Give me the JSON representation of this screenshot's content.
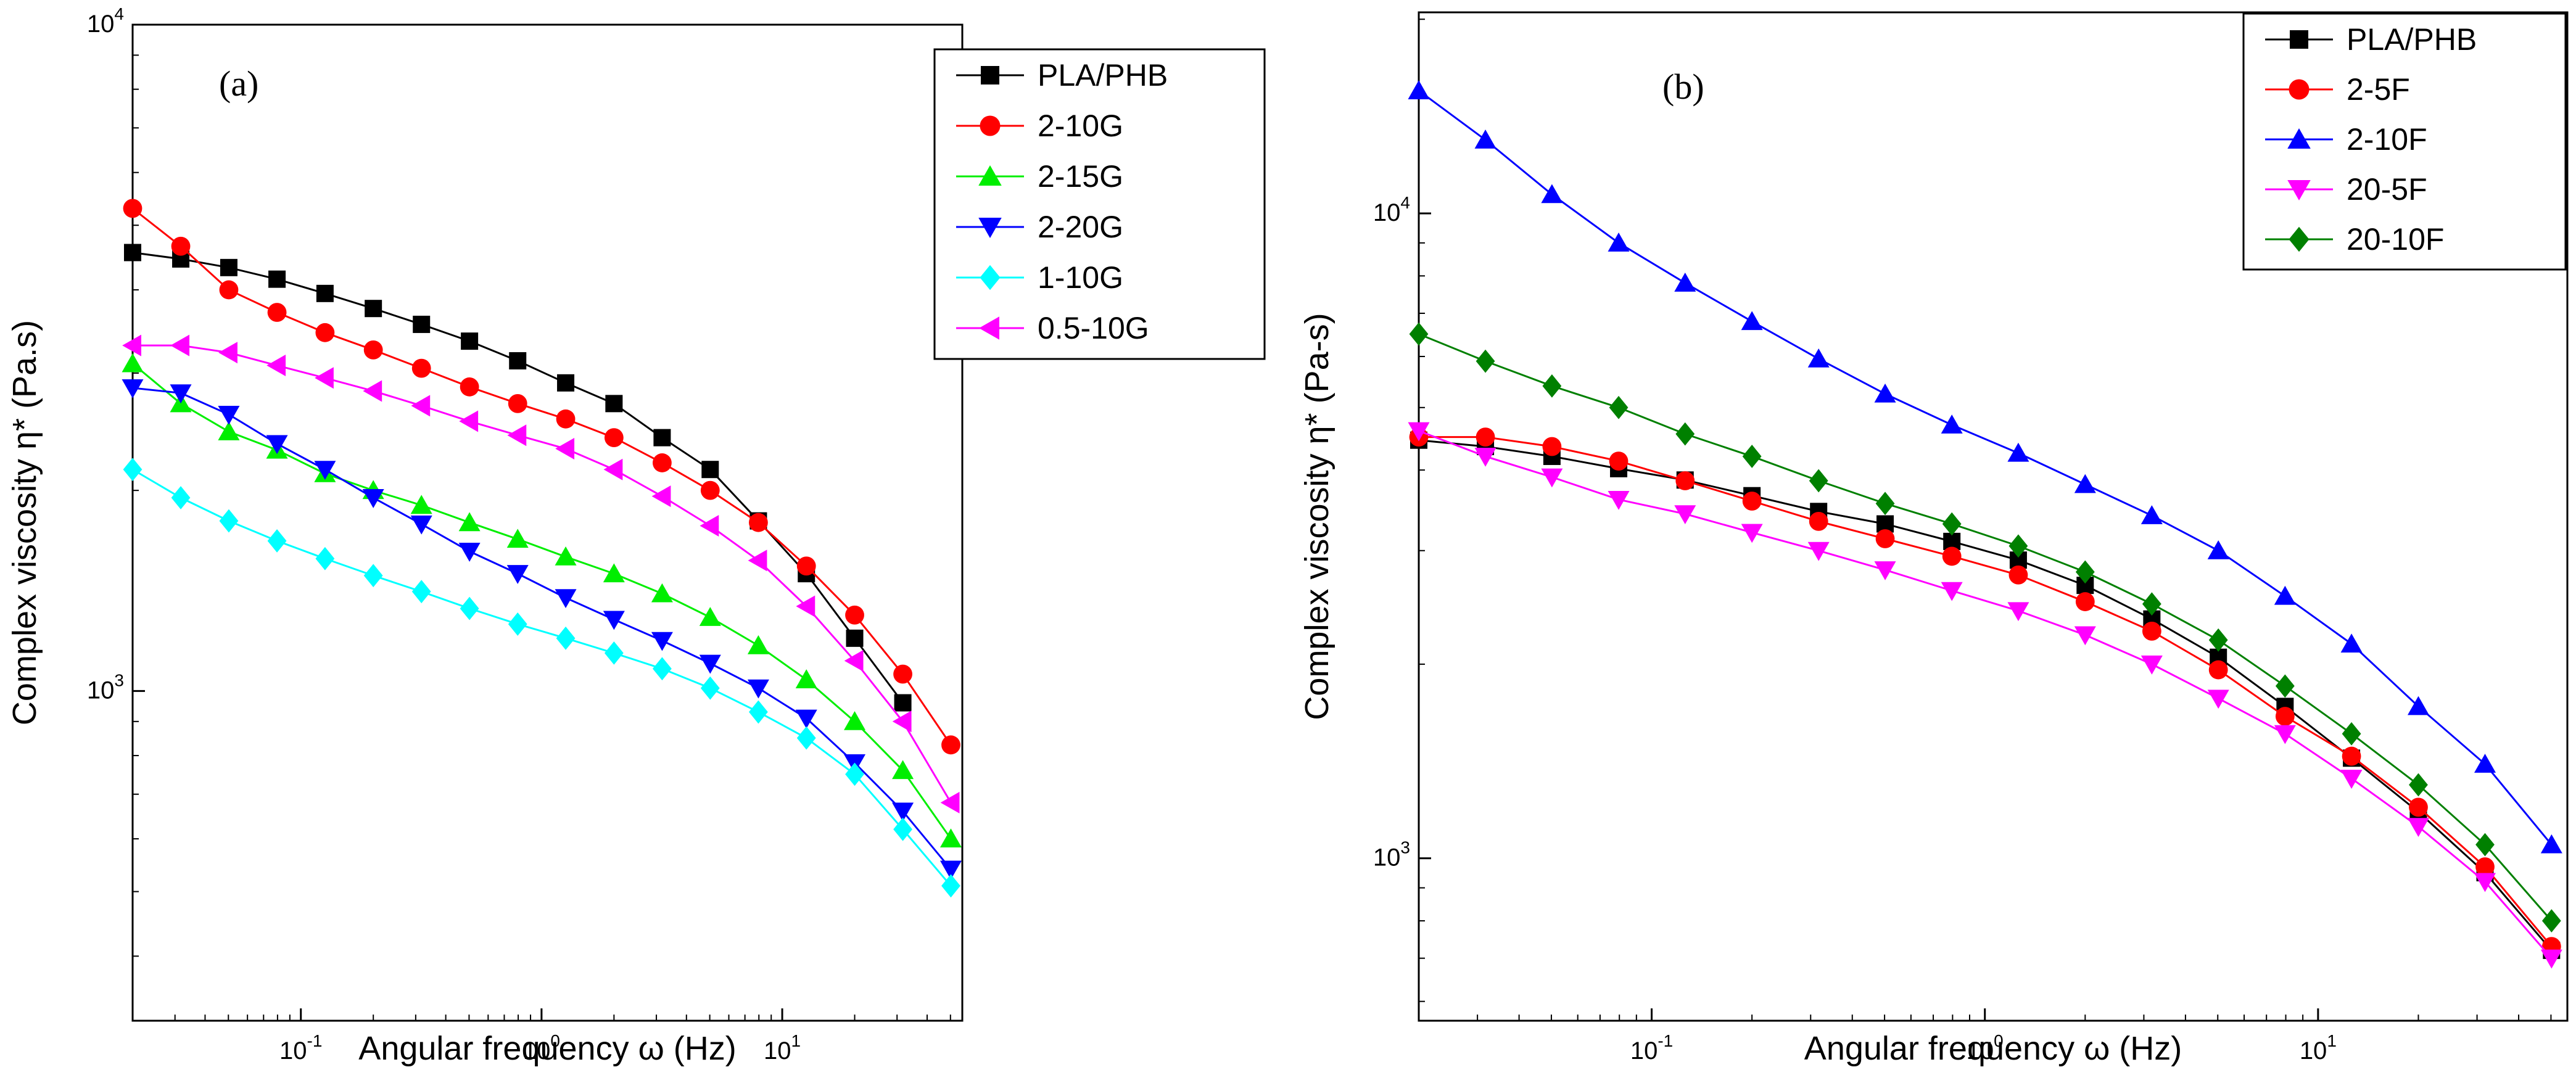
{
  "chart_data": [
    {
      "type": "line",
      "panel_label": "(a)",
      "xlabel": "Angular frequency ω (Hz)",
      "ylabel": "Complex viscosity η* (Pa.s)",
      "x_scale": "log",
      "y_scale": "log",
      "xlim": [
        0.02,
        56
      ],
      "ylim": [
        320,
        10000
      ],
      "x_ticks": [
        {
          "value": 0.1,
          "base": "10",
          "exp": "-1"
        },
        {
          "value": 1,
          "label": "10",
          "exp": "0"
        },
        {
          "value": 10,
          "base": "10",
          "exp": "1"
        }
      ],
      "y_ticks": [
        {
          "value": 1000,
          "base": "10",
          "exp": "3"
        },
        {
          "value": 10000,
          "base": "10",
          "exp": "4"
        }
      ],
      "grid": false,
      "legend_position": "top-right",
      "x": [
        0.02,
        0.0317,
        0.0502,
        0.0796,
        0.126,
        0.2,
        0.317,
        0.502,
        0.796,
        1.26,
        2.0,
        3.17,
        5.02,
        7.96,
        12.6,
        20.0,
        31.7,
        50.2
      ],
      "series": [
        {
          "name": "PLA/PHB",
          "color": "#000000",
          "marker": "square",
          "values": [
            4550,
            4450,
            4320,
            4150,
            3950,
            3750,
            3550,
            3350,
            3130,
            2900,
            2700,
            2400,
            2150,
            1800,
            1500,
            1200,
            960,
            null
          ]
        },
        {
          "name": "2-10G",
          "color": "#ff0000",
          "marker": "circle",
          "values": [
            5300,
            4650,
            4000,
            3700,
            3450,
            3250,
            3050,
            2860,
            2700,
            2560,
            2400,
            2200,
            2000,
            1790,
            1540,
            1300,
            1060,
            830
          ]
        },
        {
          "name": "2-15G",
          "color": "#00ee00",
          "marker": "triangle-up",
          "values": [
            3100,
            2700,
            2450,
            2300,
            2120,
            2000,
            1900,
            1790,
            1690,
            1590,
            1500,
            1400,
            1290,
            1170,
            1040,
            900,
            760,
            600
          ]
        },
        {
          "name": "2-20G",
          "color": "#0000ff",
          "marker": "triangle-down",
          "values": [
            2850,
            2800,
            2600,
            2350,
            2150,
            1950,
            1780,
            1620,
            1500,
            1380,
            1280,
            1190,
            1100,
            1010,
            910,
            780,
            660,
            540
          ]
        },
        {
          "name": "1-10G",
          "color": "#00ffff",
          "marker": "diamond",
          "values": [
            2150,
            1950,
            1800,
            1680,
            1580,
            1490,
            1410,
            1330,
            1260,
            1200,
            1140,
            1080,
            1010,
            930,
            850,
            750,
            620,
            510
          ]
        },
        {
          "name": "0.5-10G",
          "color": "#ff00ff",
          "marker": "triangle-left",
          "values": [
            3300,
            3300,
            3220,
            3080,
            2950,
            2820,
            2680,
            2540,
            2420,
            2310,
            2150,
            1960,
            1770,
            1570,
            1340,
            1110,
            900,
            680
          ]
        }
      ]
    },
    {
      "type": "line",
      "panel_label": "(b)",
      "xlabel": "Angular frequency ω (Hz)",
      "ylabel": "Complex viscosity η* (Pa-s)",
      "x_scale": "log",
      "y_scale": "log",
      "xlim": [
        0.02,
        56
      ],
      "ylim": [
        560,
        20500
      ],
      "x_ticks": [
        {
          "value": 0.1,
          "base": "10",
          "exp": "-1"
        },
        {
          "value": 1,
          "label": "10",
          "exp": "0"
        },
        {
          "value": 10,
          "base": "10",
          "exp": "1"
        }
      ],
      "y_ticks": [
        {
          "value": 1000,
          "base": "10",
          "exp": "3"
        },
        {
          "value": 10000,
          "base": "10",
          "exp": "4"
        }
      ],
      "grid": false,
      "legend_position": "top-right",
      "x": [
        0.02,
        0.0317,
        0.0502,
        0.0796,
        0.126,
        0.2,
        0.317,
        0.502,
        0.796,
        1.26,
        2.0,
        3.17,
        5.02,
        7.96,
        12.6,
        20.0,
        31.7,
        50.2
      ],
      "series": [
        {
          "name": "PLA/PHB",
          "color": "#000000",
          "marker": "square",
          "values": [
            4450,
            4350,
            4200,
            4020,
            3860,
            3650,
            3450,
            3300,
            3100,
            2900,
            2650,
            2350,
            2050,
            1720,
            1430,
            1180,
            950,
            720
          ]
        },
        {
          "name": "2-5F",
          "color": "#ff0000",
          "marker": "circle",
          "values": [
            4500,
            4500,
            4350,
            4130,
            3850,
            3580,
            3330,
            3130,
            2940,
            2750,
            2500,
            2250,
            1960,
            1660,
            1440,
            1200,
            970,
            730
          ]
        },
        {
          "name": "2-10F",
          "color": "#0000ff",
          "marker": "triangle-up",
          "values": [
            15500,
            13000,
            10700,
            9000,
            7800,
            6800,
            5950,
            5250,
            4700,
            4250,
            3800,
            3400,
            3000,
            2550,
            2150,
            1720,
            1400,
            1050
          ]
        },
        {
          "name": "20-5F",
          "color": "#ff00ff",
          "marker": "triangle-down",
          "values": [
            4600,
            4200,
            3900,
            3600,
            3420,
            3200,
            3000,
            2800,
            2600,
            2420,
            2220,
            2000,
            1770,
            1560,
            1330,
            1120,
            920,
            700
          ]
        },
        {
          "name": "20-10F",
          "color": "#008000",
          "marker": "diamond",
          "values": [
            6500,
            5900,
            5400,
            5000,
            4550,
            4200,
            3850,
            3550,
            3300,
            3050,
            2780,
            2480,
            2180,
            1850,
            1560,
            1300,
            1050,
            800
          ]
        }
      ]
    }
  ]
}
